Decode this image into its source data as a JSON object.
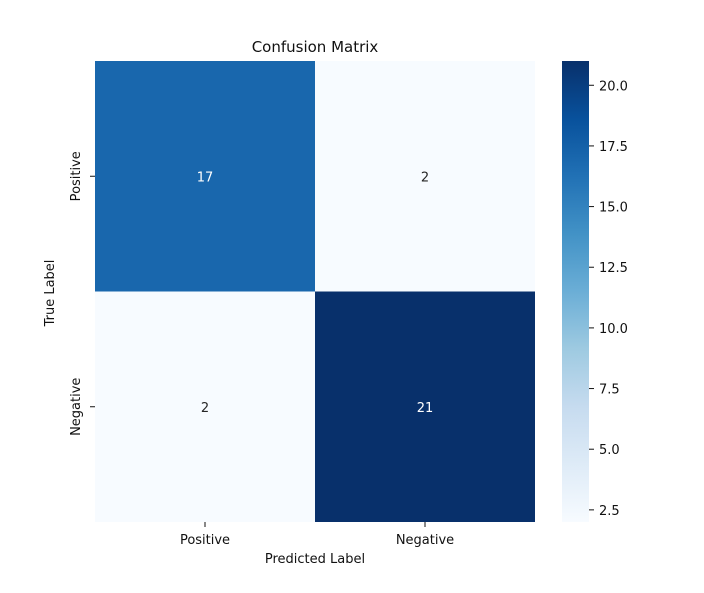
{
  "chart_data": {
    "type": "heatmap",
    "title": "Confusion Matrix",
    "xlabel": "Predicted Label",
    "ylabel": "True Label",
    "x_categories": [
      "Positive",
      "Negative"
    ],
    "y_categories": [
      "Positive",
      "Negative"
    ],
    "values": [
      [
        17,
        2
      ],
      [
        2,
        21
      ]
    ],
    "colormap": "Blues",
    "colorbar": {
      "range": [
        2,
        21
      ],
      "ticks": [
        2.5,
        5.0,
        7.5,
        10.0,
        12.5,
        15.0,
        17.5,
        20.0
      ],
      "tick_labels": [
        "2.5",
        "5.0",
        "7.5",
        "10.0",
        "12.5",
        "15.0",
        "17.5",
        "20.0"
      ]
    },
    "grid": false,
    "colors": {
      "low": "#f7fbff",
      "high": "#08306b",
      "text_on_dark": "#ffffff",
      "text_on_light": "#262626"
    }
  }
}
